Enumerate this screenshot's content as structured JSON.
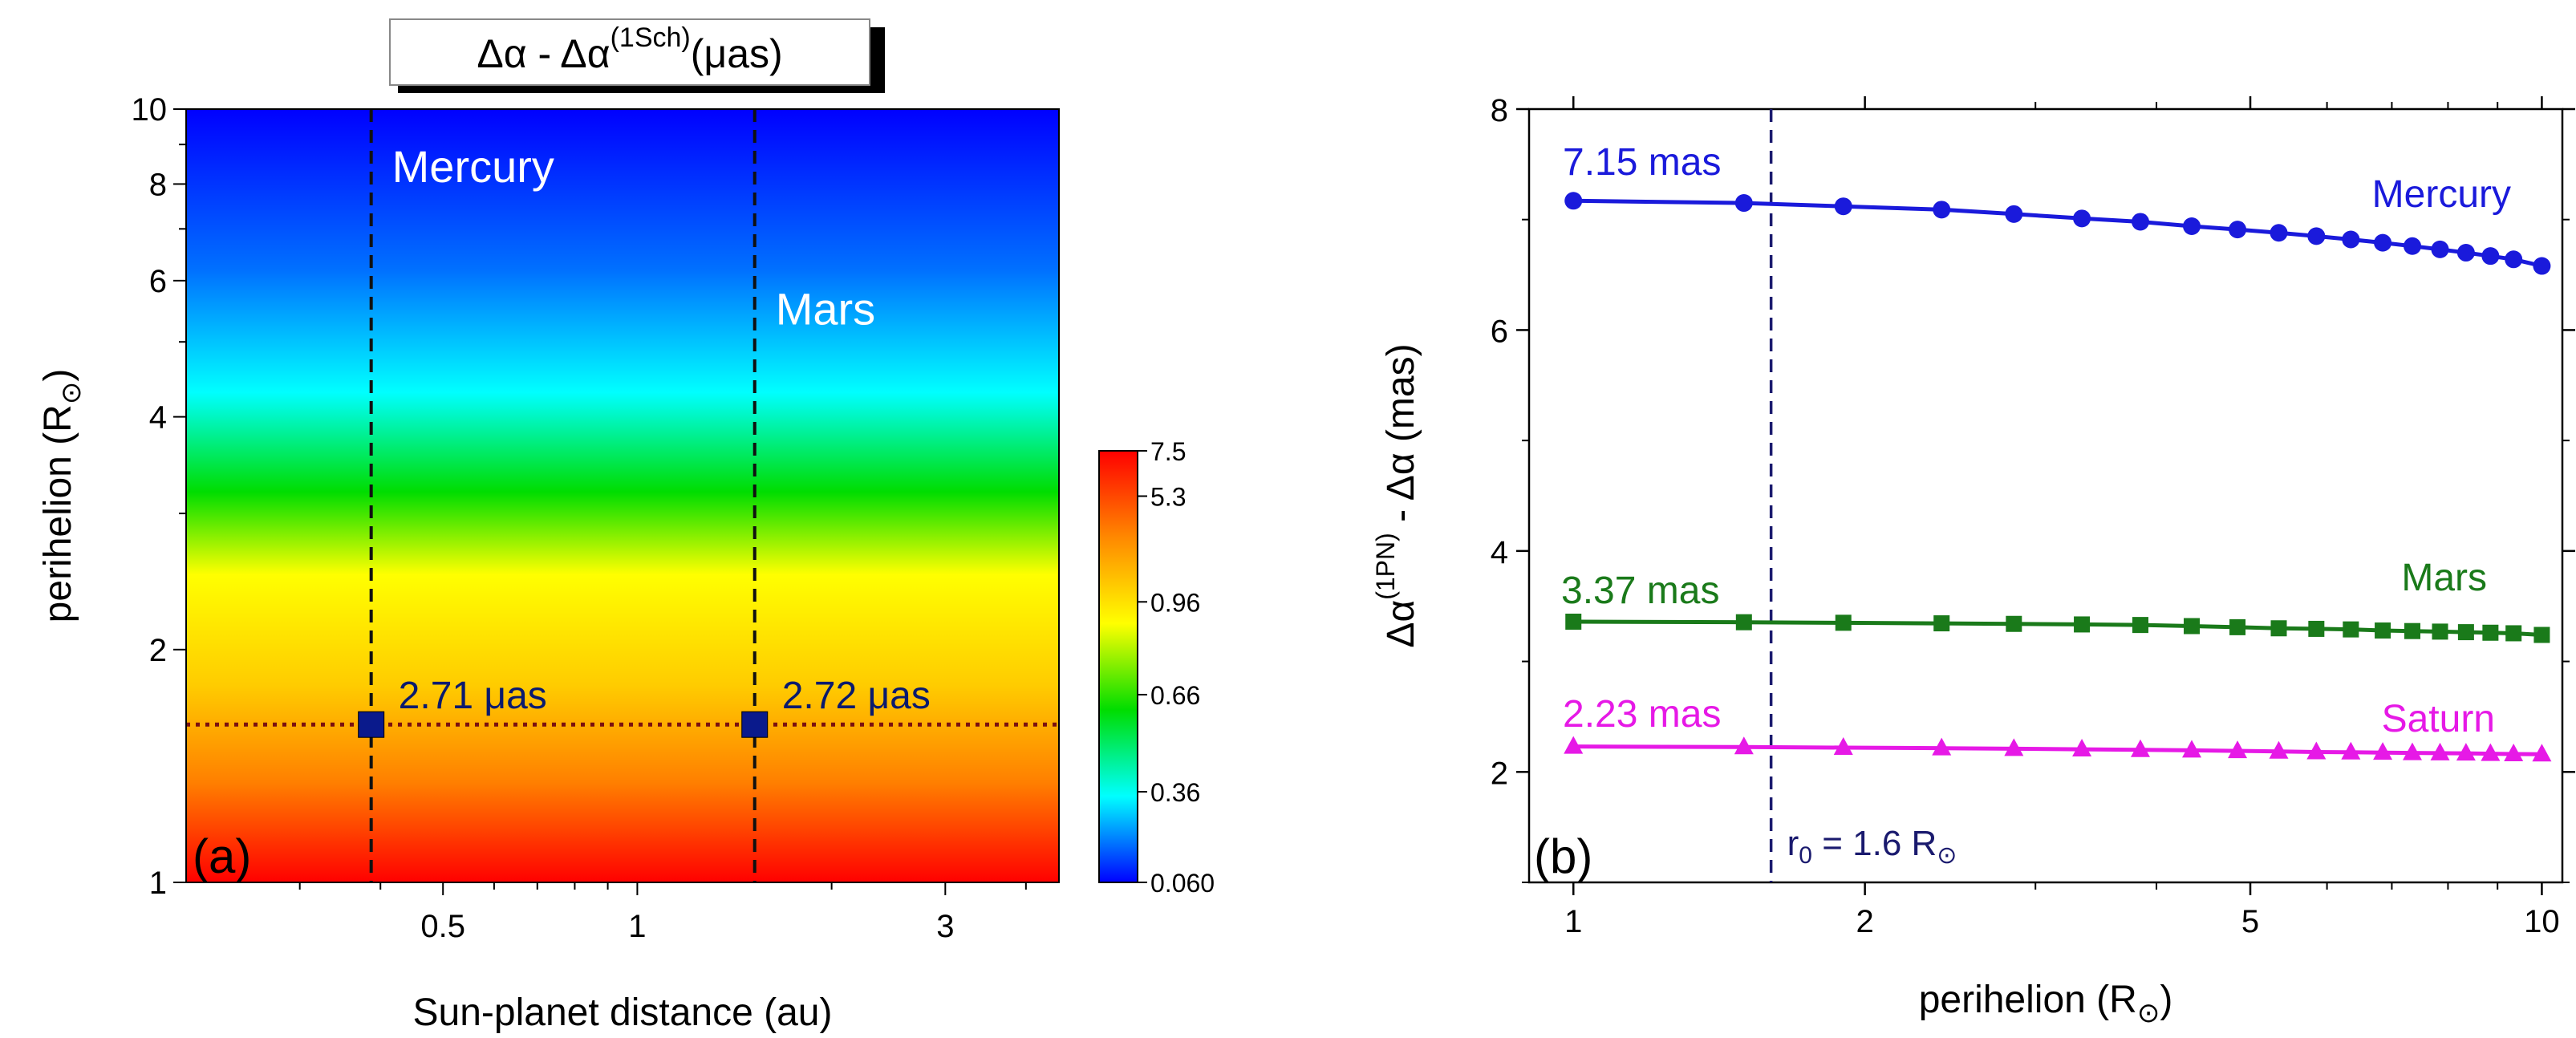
{
  "chart_data": [
    {
      "type": "heatmap",
      "panel_label": "(a)",
      "title_parts": {
        "base": "Δα - Δα",
        "sup": "(1Sch)",
        "unit": "(μas)"
      },
      "xlabel": "Sun-planet distance (au)",
      "ylabel": {
        "base": "perihelion (R",
        "sub": "⊙",
        "end": ")"
      },
      "xscale": "log",
      "yscale": "log",
      "xlim": [
        0.2,
        4.5
      ],
      "ylim": [
        1,
        10
      ],
      "x_ticks": [
        0.5,
        1,
        3
      ],
      "x_tick_labels": [
        "0.5",
        "1",
        "3"
      ],
      "y_ticks": [
        1,
        2,
        4,
        6,
        8,
        10
      ],
      "y_tick_labels": [
        "1",
        "2",
        "4",
        "6",
        "8",
        "10"
      ],
      "colorbar": {
        "tick_labels": [
          "7.5",
          "5.3",
          "0.96",
          "0.66",
          "0.36",
          "0.060"
        ],
        "colors": [
          "#ff0000",
          "#ff8800",
          "#ffff00",
          "#00dd00",
          "#00ffff",
          "#0000ff"
        ]
      },
      "gradient_stops": [
        {
          "perihelion": 10,
          "color": "#0000ff"
        },
        {
          "perihelion": 6.2,
          "color": "#0070ff"
        },
        {
          "perihelion": 4.3,
          "color": "#00ffff"
        },
        {
          "perihelion": 3.2,
          "color": "#00dd00"
        },
        {
          "perihelion": 2.5,
          "color": "#ffff00"
        },
        {
          "perihelion": 1.8,
          "color": "#ffcc00"
        },
        {
          "perihelion": 1.35,
          "color": "#ff8000"
        },
        {
          "perihelion": 1,
          "color": "#ff0000"
        }
      ],
      "vlines": [
        {
          "x": 0.387,
          "label": "Mercury",
          "label_y": 8.4
        },
        {
          "x": 1.52,
          "label": "Mars",
          "label_y": 5.5
        }
      ],
      "hline": {
        "y": 1.6
      },
      "markers": [
        {
          "x": 0.387,
          "y": 1.6,
          "label": "2.71 μas"
        },
        {
          "x": 1.52,
          "y": 1.6,
          "label": "2.72 μas"
        }
      ]
    },
    {
      "type": "line",
      "panel_label": "(b)",
      "xlabel": {
        "base": "perihelion (R",
        "sub": "⊙",
        "end": ")"
      },
      "ylabel": {
        "a": "Δα",
        "sup": "(1PN)",
        "b": " - Δα (mas)"
      },
      "xscale": "log",
      "xlim": [
        0.9,
        10.5
      ],
      "ylim": [
        1,
        8
      ],
      "x_ticks": [
        1,
        2,
        5,
        10
      ],
      "x_tick_labels": [
        "1",
        "2",
        "5",
        "10"
      ],
      "y_ticks": [
        2,
        4,
        6,
        8
      ],
      "y_tick_labels": [
        "2",
        "4",
        "6",
        "8"
      ],
      "vline": {
        "x": 1.6,
        "label_base": "r",
        "label_sub": "0",
        "label_mid": " = 1.6 R",
        "label_sub2": "⊙"
      },
      "x": [
        1,
        1.5,
        1.9,
        2.4,
        2.85,
        3.35,
        3.85,
        4.35,
        4.85,
        5.35,
        5.85,
        6.35,
        6.85,
        7.35,
        7.85,
        8.35,
        8.85,
        9.35,
        10
      ],
      "series": [
        {
          "name": "Mercury",
          "color": "#1a1adb",
          "marker": "circle",
          "value_label": "7.15 mas",
          "values": [
            7.17,
            7.15,
            7.12,
            7.09,
            7.05,
            7.01,
            6.98,
            6.94,
            6.91,
            6.88,
            6.85,
            6.82,
            6.79,
            6.76,
            6.73,
            6.7,
            6.67,
            6.64,
            6.58
          ]
        },
        {
          "name": "Mars",
          "color": "#1a7a1a",
          "marker": "square",
          "value_label": "3.37 mas",
          "values": [
            3.36,
            3.355,
            3.35,
            3.345,
            3.34,
            3.335,
            3.33,
            3.32,
            3.31,
            3.3,
            3.295,
            3.29,
            3.28,
            3.275,
            3.27,
            3.265,
            3.26,
            3.255,
            3.24
          ]
        },
        {
          "name": "Saturn",
          "color": "#e619e6",
          "marker": "triangle",
          "value_label": "2.23 mas",
          "values": [
            2.23,
            2.225,
            2.22,
            2.215,
            2.21,
            2.205,
            2.2,
            2.195,
            2.19,
            2.185,
            2.18,
            2.178,
            2.175,
            2.172,
            2.17,
            2.168,
            2.165,
            2.162,
            2.16
          ]
        }
      ]
    }
  ]
}
